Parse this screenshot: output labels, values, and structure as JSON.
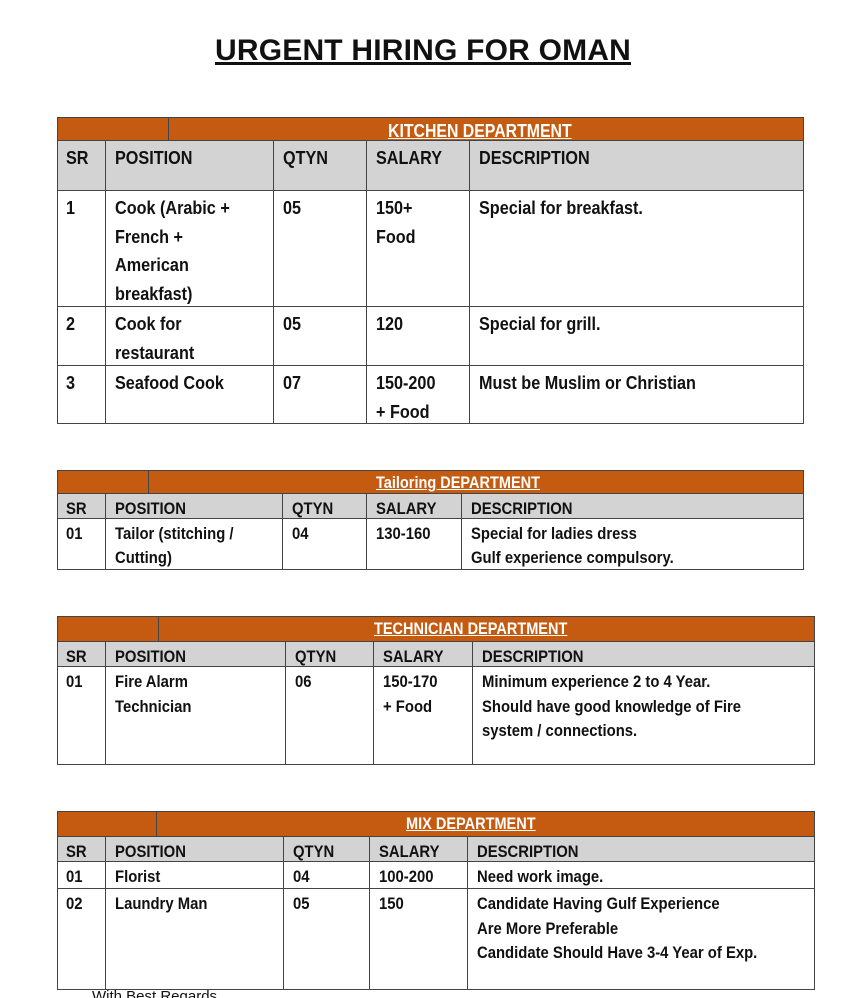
{
  "title": "URGENT HIRING FOR OMAN",
  "colors": {
    "band": "#c55a11",
    "header_row": "#d3d3d3"
  },
  "tables": [
    {
      "department": "KITCHEN DEPARTMENT",
      "headers": [
        "SR",
        "POSITION",
        "QTYN",
        "SALARY",
        "DESCRIPTION"
      ],
      "rows": [
        [
          [
            "1"
          ],
          [
            "Cook (Arabic +",
            "French +",
            "American",
            "breakfast)"
          ],
          [
            "05"
          ],
          [
            "150+",
            "Food"
          ],
          [
            "Special for breakfast."
          ]
        ],
        [
          [
            "2"
          ],
          [
            "Cook for",
            "restaurant"
          ],
          [
            "05"
          ],
          [
            "120"
          ],
          [
            "Special for grill."
          ]
        ],
        [
          [
            "3"
          ],
          [
            "Seafood Cook"
          ],
          [
            "07"
          ],
          [
            "150-200",
            "+ Food"
          ],
          [
            "Must be Muslim or Christian"
          ]
        ]
      ]
    },
    {
      "department": "Tailoring  DEPARTMENT",
      "headers": [
        "SR",
        "POSITION",
        "QTYN",
        "SALARY",
        "DESCRIPTION"
      ],
      "rows": [
        [
          [
            "01"
          ],
          [
            "Tailor (stitching /",
            "Cutting)"
          ],
          [
            "04"
          ],
          [
            "130-160"
          ],
          [
            "Special for ladies dress",
            "Gulf experience compulsory."
          ]
        ]
      ]
    },
    {
      "department": "TECHNICIAN DEPARTMENT",
      "headers": [
        "SR",
        "POSITION",
        "QTYN",
        "SALARY",
        "DESCRIPTION"
      ],
      "rows": [
        [
          [
            "01"
          ],
          [
            "Fire Alarm",
            "Technician"
          ],
          [
            "06"
          ],
          [
            "150-170",
            "+ Food"
          ],
          [
            "Minimum experience 2 to 4 Year.",
            "Should have good knowledge of Fire",
            "system / connections."
          ]
        ]
      ]
    },
    {
      "department": "MIX  DEPARTMENT",
      "headers": [
        "SR",
        "POSITION",
        "QTYN",
        "SALARY",
        "DESCRIPTION"
      ],
      "rows": [
        [
          [
            "01"
          ],
          [
            "Florist"
          ],
          [
            "04"
          ],
          [
            "100-200"
          ],
          [
            "Need work image."
          ]
        ],
        [
          [
            "02"
          ],
          [
            "Laundry Man"
          ],
          [
            "05"
          ],
          [
            "150"
          ],
          [
            "Candidate Having Gulf Experience",
            "Are More Preferable",
            "Candidate Should Have 3-4 Year of Exp."
          ]
        ]
      ]
    }
  ],
  "footer": "With Best Regards"
}
